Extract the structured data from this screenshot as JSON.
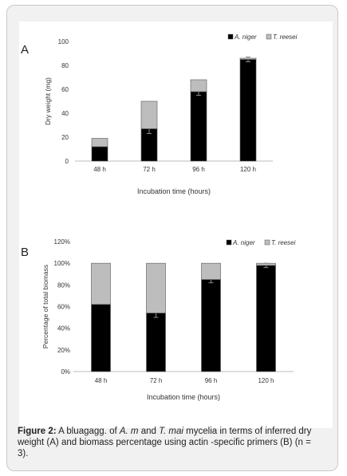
{
  "chart_data": [
    {
      "panel": "A",
      "type": "bar",
      "stacked": true,
      "categories": [
        "48 h",
        "72 h",
        "96 h",
        "120 h"
      ],
      "series": [
        {
          "name": "A. niger",
          "values": [
            12,
            27,
            58,
            85
          ],
          "error": [
            0,
            4,
            3,
            2
          ],
          "color": "#000000"
        },
        {
          "name": "T. reesei",
          "values": [
            7,
            23,
            10,
            1
          ],
          "color": "#bdbdbd"
        }
      ],
      "ylabel": "Dry weight (mg)",
      "xlabel": "Incubation time (hours)",
      "yticks": [
        "0",
        "20",
        "40",
        "60",
        "80",
        "100"
      ],
      "ylim": [
        0,
        100
      ],
      "legend": "top-right"
    },
    {
      "panel": "B",
      "type": "bar",
      "stacked": true,
      "categories": [
        "48 h",
        "72 h",
        "96 h",
        "120 h"
      ],
      "series": [
        {
          "name": "A. niger",
          "values": [
            62,
            54,
            85,
            98
          ],
          "error": [
            0,
            4,
            3,
            2
          ],
          "color": "#000000"
        },
        {
          "name": "T. reesei",
          "values": [
            38,
            46,
            15,
            2
          ],
          "color": "#bdbdbd"
        }
      ],
      "ylabel": "Percentage of total biomass",
      "xlabel": "Incubation time (hours)",
      "yticks": [
        "0%",
        "20%",
        "40%",
        "60%",
        "80%",
        "100%",
        "120%"
      ],
      "ylim": [
        0,
        120
      ],
      "legend": "top-right"
    }
  ],
  "caption": {
    "label": "Figure 2:",
    "segments": [
      {
        "text": " A bluagagg. of ",
        "style": "normal"
      },
      {
        "text": "A. m",
        "style": "italic"
      },
      {
        "text": " and ",
        "style": "normal"
      },
      {
        "text": "T. mai",
        "style": "italic"
      },
      {
        "text": " mycelia in terms of inferred dry weight (A) and biomass percentage using actin -specific primers (B) (n = 3).",
        "style": "normal"
      }
    ]
  }
}
